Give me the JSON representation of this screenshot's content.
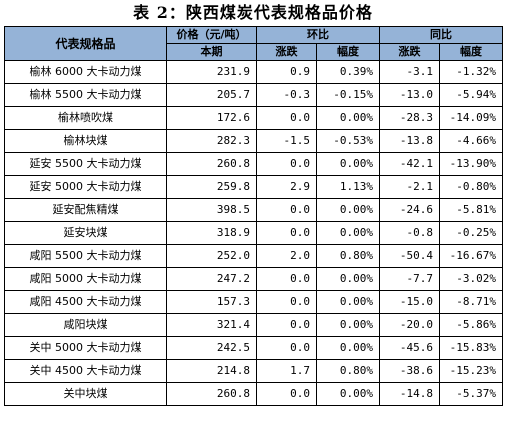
{
  "title": "表 2：陕西煤炭代表规格品价格",
  "header": {
    "col_name": "代表规格品",
    "col_price": "价格（元/吨）",
    "col_mom": "环比",
    "col_yoy": "同比",
    "sub_current": "本期",
    "sub_mom_change": "涨跌",
    "sub_mom_pct": "幅度",
    "sub_yoy_change": "涨跌",
    "sub_yoy_pct": "幅度"
  },
  "rows": [
    {
      "name": "榆林 6000 大卡动力煤",
      "price": "231.9",
      "mom_change": "0.9",
      "mom_pct": "0.39%",
      "yoy_change": "-3.1",
      "yoy_pct": "-1.32%"
    },
    {
      "name": "榆林 5500 大卡动力煤",
      "price": "205.7",
      "mom_change": "-0.3",
      "mom_pct": "-0.15%",
      "yoy_change": "-13.0",
      "yoy_pct": "-5.94%"
    },
    {
      "name": "榆林喷吹煤",
      "price": "172.6",
      "mom_change": "0.0",
      "mom_pct": "0.00%",
      "yoy_change": "-28.3",
      "yoy_pct": "-14.09%"
    },
    {
      "name": "榆林块煤",
      "price": "282.3",
      "mom_change": "-1.5",
      "mom_pct": "-0.53%",
      "yoy_change": "-13.8",
      "yoy_pct": "-4.66%"
    },
    {
      "name": "延安 5500 大卡动力煤",
      "price": "260.8",
      "mom_change": "0.0",
      "mom_pct": "0.00%",
      "yoy_change": "-42.1",
      "yoy_pct": "-13.90%"
    },
    {
      "name": "延安 5000 大卡动力煤",
      "price": "259.8",
      "mom_change": "2.9",
      "mom_pct": "1.13%",
      "yoy_change": "-2.1",
      "yoy_pct": "-0.80%"
    },
    {
      "name": "延安配焦精煤",
      "price": "398.5",
      "mom_change": "0.0",
      "mom_pct": "0.00%",
      "yoy_change": "-24.6",
      "yoy_pct": "-5.81%"
    },
    {
      "name": "延安块煤",
      "price": "318.9",
      "mom_change": "0.0",
      "mom_pct": "0.00%",
      "yoy_change": "-0.8",
      "yoy_pct": "-0.25%"
    },
    {
      "name": "咸阳 5500 大卡动力煤",
      "price": "252.0",
      "mom_change": "2.0",
      "mom_pct": "0.80%",
      "yoy_change": "-50.4",
      "yoy_pct": "-16.67%"
    },
    {
      "name": "咸阳 5000 大卡动力煤",
      "price": "247.2",
      "mom_change": "0.0",
      "mom_pct": "0.00%",
      "yoy_change": "-7.7",
      "yoy_pct": "-3.02%"
    },
    {
      "name": "咸阳 4500 大卡动力煤",
      "price": "157.3",
      "mom_change": "0.0",
      "mom_pct": "0.00%",
      "yoy_change": "-15.0",
      "yoy_pct": "-8.71%"
    },
    {
      "name": "咸阳块煤",
      "price": "321.4",
      "mom_change": "0.0",
      "mom_pct": "0.00%",
      "yoy_change": "-20.0",
      "yoy_pct": "-5.86%"
    },
    {
      "name": "关中 5000 大卡动力煤",
      "price": "242.5",
      "mom_change": "0.0",
      "mom_pct": "0.00%",
      "yoy_change": "-45.6",
      "yoy_pct": "-15.83%"
    },
    {
      "name": "关中 4500 大卡动力煤",
      "price": "214.8",
      "mom_change": "1.7",
      "mom_pct": "0.80%",
      "yoy_change": "-38.6",
      "yoy_pct": "-15.23%"
    },
    {
      "name": "关中块煤",
      "price": "260.8",
      "mom_change": "0.0",
      "mom_pct": "0.00%",
      "yoy_change": "-14.8",
      "yoy_pct": "-5.37%"
    }
  ]
}
